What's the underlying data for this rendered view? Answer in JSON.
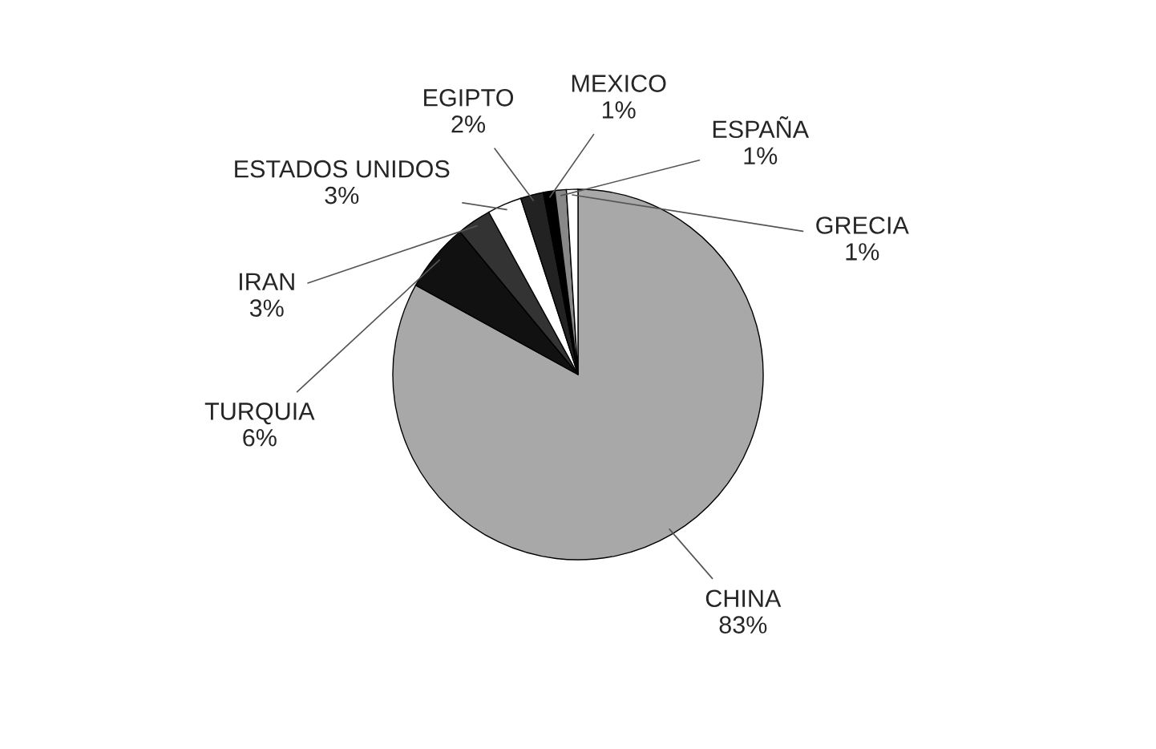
{
  "chart_data": {
    "type": "pie",
    "categories": [
      "CHINA",
      "TURQUIA",
      "IRAN",
      "ESTADOS UNIDOS",
      "EGIPTO",
      "MEXICO",
      "ESPAÑA",
      "GRECIA"
    ],
    "values": [
      83,
      6,
      3,
      3,
      2,
      1,
      1,
      1
    ],
    "value_labels": [
      "83%",
      "6%",
      "3%",
      "3%",
      "2%",
      "1%",
      "1%",
      "1%"
    ],
    "colors": [
      "#a8a8a8",
      "#111111",
      "#333333",
      "#ffffff",
      "#222222",
      "#000000",
      "#888888",
      "#ffffff"
    ]
  }
}
